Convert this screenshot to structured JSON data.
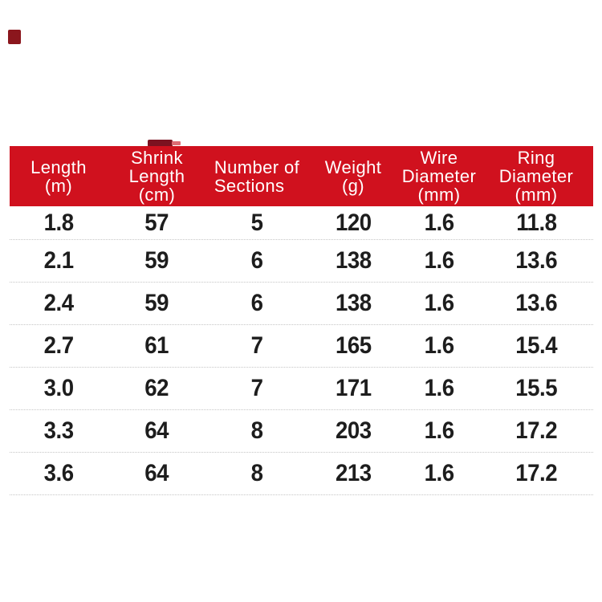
{
  "colors": {
    "header-bg": "#d0111e",
    "header-text": "#ffffff",
    "cell-text": "#1d1d1d",
    "separator": "#c6c6c6",
    "corner-mark": "#8b161d"
  },
  "chart_data": {
    "type": "table",
    "columns": [
      "Length (m)",
      "Shrink Length (cm)",
      "Number of Sections",
      "Weight (g)",
      "Wire Diameter (mm)",
      "Ring Diameter (mm)"
    ],
    "header_lines": [
      [
        "Length",
        "(m)"
      ],
      [
        "Shrink",
        "Length",
        "(cm)"
      ],
      [
        "Number of",
        "Sections"
      ],
      [
        "Weight",
        "(g)"
      ],
      [
        "Wire",
        "Diameter",
        "(mm)"
      ],
      [
        "Ring",
        "Diameter",
        "(mm)"
      ]
    ],
    "rows": [
      [
        "1.8",
        "57",
        "5",
        "120",
        "1.6",
        "11.8"
      ],
      [
        "2.1",
        "59",
        "6",
        "138",
        "1.6",
        "13.6"
      ],
      [
        "2.4",
        "59",
        "6",
        "138",
        "1.6",
        "13.6"
      ],
      [
        "2.7",
        "61",
        "7",
        "165",
        "1.6",
        "15.4"
      ],
      [
        "3.0",
        "62",
        "7",
        "171",
        "1.6",
        "15.5"
      ],
      [
        "3.3",
        "64",
        "8",
        "203",
        "1.6",
        "17.2"
      ],
      [
        "3.6",
        "64",
        "8",
        "213",
        "1.6",
        "17.2"
      ]
    ]
  }
}
